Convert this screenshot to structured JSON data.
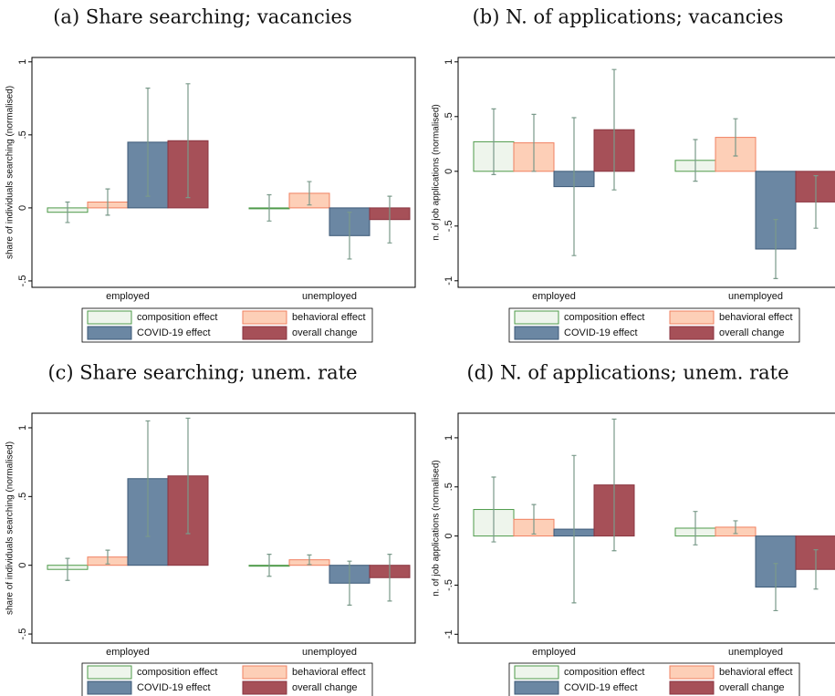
{
  "chart_data": [
    {
      "type": "bar",
      "title": "(a) Share searching; vacancies",
      "ylabel": "share of individuals searching (normalised)",
      "categories": [
        "employed",
        "unemployed"
      ],
      "series": [
        {
          "name": "composition effect",
          "color": "#eef5ec",
          "edgecolor": "#4e9a4a",
          "values": [
            -0.03,
            0.0
          ],
          "errors": [
            0.07,
            0.09
          ]
        },
        {
          "name": "behavioral effect",
          "color": "#fdcfb7",
          "edgecolor": "#f08060",
          "values": [
            0.04,
            0.1
          ],
          "errors": [
            0.09,
            0.08
          ]
        },
        {
          "name": "COVID-19 effect",
          "color": "#6b87a3",
          "edgecolor": "#3d5a77",
          "values": [
            0.45,
            -0.19
          ],
          "errors": [
            0.37,
            0.16
          ]
        },
        {
          "name": "overall change",
          "color": "#a65058",
          "edgecolor": "#8a3540",
          "values": [
            0.46,
            -0.08
          ],
          "errors": [
            0.39,
            0.16
          ]
        }
      ],
      "ylim": [
        -0.544,
        1.03
      ],
      "yticks": [
        {
          "value": -0.5,
          "label": "-.5"
        },
        0,
        {
          "value": 0.5,
          "label": ".5"
        },
        1
      ]
    },
    {
      "type": "bar",
      "title": "(b) N. of applications; vacancies",
      "ylabel": "n. of job applications (normalised)",
      "categories": [
        "employed",
        "unemployed"
      ],
      "series": [
        {
          "name": "composition effect",
          "color": "#eef5ec",
          "edgecolor": "#4e9a4a",
          "values": [
            0.27,
            0.1
          ],
          "errors": [
            0.3,
            0.19
          ]
        },
        {
          "name": "behavioral effect",
          "color": "#fdcfb7",
          "edgecolor": "#f08060",
          "values": [
            0.26,
            0.31
          ],
          "errors": [
            0.26,
            0.17
          ]
        },
        {
          "name": "COVID-19 effect",
          "color": "#6b87a3",
          "edgecolor": "#3d5a77",
          "values": [
            -0.14,
            -0.71
          ],
          "errors": [
            0.63,
            0.27
          ]
        },
        {
          "name": "overall change",
          "color": "#a65058",
          "edgecolor": "#8a3540",
          "values": [
            0.38,
            -0.28
          ],
          "errors": [
            0.55,
            0.24
          ]
        }
      ],
      "ylim": [
        -1.06,
        1.04
      ],
      "yticks": [
        -1,
        {
          "value": -0.5,
          "label": "-.5"
        },
        0,
        {
          "value": 0.5,
          "label": ".5"
        },
        1
      ]
    },
    {
      "type": "bar",
      "title": "(c) Share searching; unem. rate",
      "ylabel": "share of individuals searching (normalised)",
      "categories": [
        "employed",
        "unemployed"
      ],
      "series": [
        {
          "name": "composition effect",
          "color": "#eef5ec",
          "edgecolor": "#4e9a4a",
          "values": [
            -0.03,
            0.0
          ],
          "errors": [
            0.08,
            0.08
          ]
        },
        {
          "name": "behavioral effect",
          "color": "#fdcfb7",
          "edgecolor": "#f08060",
          "values": [
            0.06,
            0.04
          ],
          "errors": [
            0.05,
            0.035
          ]
        },
        {
          "name": "COVID-19 effect",
          "color": "#6b87a3",
          "edgecolor": "#3d5a77",
          "values": [
            0.63,
            -0.13
          ],
          "errors": [
            0.42,
            0.16
          ]
        },
        {
          "name": "overall change",
          "color": "#a65058",
          "edgecolor": "#8a3540",
          "values": [
            0.65,
            -0.09
          ],
          "errors": [
            0.42,
            0.17
          ]
        }
      ],
      "ylim": [
        -0.566,
        1.106
      ],
      "yticks": [
        {
          "value": -0.5,
          "label": "-.5"
        },
        0,
        {
          "value": 0.5,
          "label": ".5"
        },
        1
      ]
    },
    {
      "type": "bar",
      "title": "(d) N. of applications; unem. rate",
      "ylabel": "n. of job applications (normalised)",
      "categories": [
        "employed",
        "unemployed"
      ],
      "series": [
        {
          "name": "composition effect",
          "color": "#eef5ec",
          "edgecolor": "#4e9a4a",
          "values": [
            0.27,
            0.08
          ],
          "errors": [
            0.33,
            0.17
          ]
        },
        {
          "name": "behavioral effect",
          "color": "#fdcfb7",
          "edgecolor": "#f08060",
          "values": [
            0.17,
            0.09
          ],
          "errors": [
            0.15,
            0.065
          ]
        },
        {
          "name": "COVID-19 effect",
          "color": "#6b87a3",
          "edgecolor": "#3d5a77",
          "values": [
            0.07,
            -0.52
          ],
          "errors": [
            0.75,
            0.24
          ]
        },
        {
          "name": "overall change",
          "color": "#a65058",
          "edgecolor": "#8a3540",
          "values": [
            0.52,
            -0.34
          ],
          "errors": [
            0.67,
            0.2
          ]
        }
      ],
      "ylim": [
        -1.09,
        1.25
      ],
      "yticks": [
        -1,
        {
          "value": -0.5,
          "label": "-.5"
        },
        0,
        {
          "value": 0.5,
          "label": ".5"
        },
        1
      ]
    }
  ]
}
